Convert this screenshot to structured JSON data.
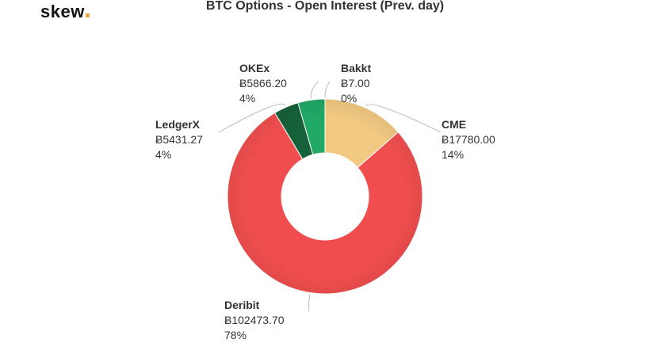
{
  "logo": {
    "text": "skew",
    "dot_color": "#e7a53a"
  },
  "chart_data": {
    "type": "pie",
    "donut": true,
    "title": "BTC Options - Open Interest (Prev. day)",
    "currency_symbol": "Ƀ",
    "slices": [
      {
        "name": "CME",
        "value_label": "Ƀ17780.00",
        "value": 17780.0,
        "percent_label": "14%",
        "color": "#f2c982"
      },
      {
        "name": "Deribit",
        "value_label": "Ƀ102473.70",
        "value": 102473.7,
        "percent_label": "78%",
        "color": "#f04e4e"
      },
      {
        "name": "LedgerX",
        "value_label": "Ƀ5431.27",
        "value": 5431.27,
        "percent_label": "4%",
        "color": "#16603a"
      },
      {
        "name": "OKEx",
        "value_label": "Ƀ5866.20",
        "value": 5866.2,
        "percent_label": "4%",
        "color": "#21a865"
      },
      {
        "name": "Bakkt",
        "value_label": "Ƀ7.00",
        "value": 7.0,
        "percent_label": "0%",
        "color": "#f2c982"
      }
    ]
  }
}
